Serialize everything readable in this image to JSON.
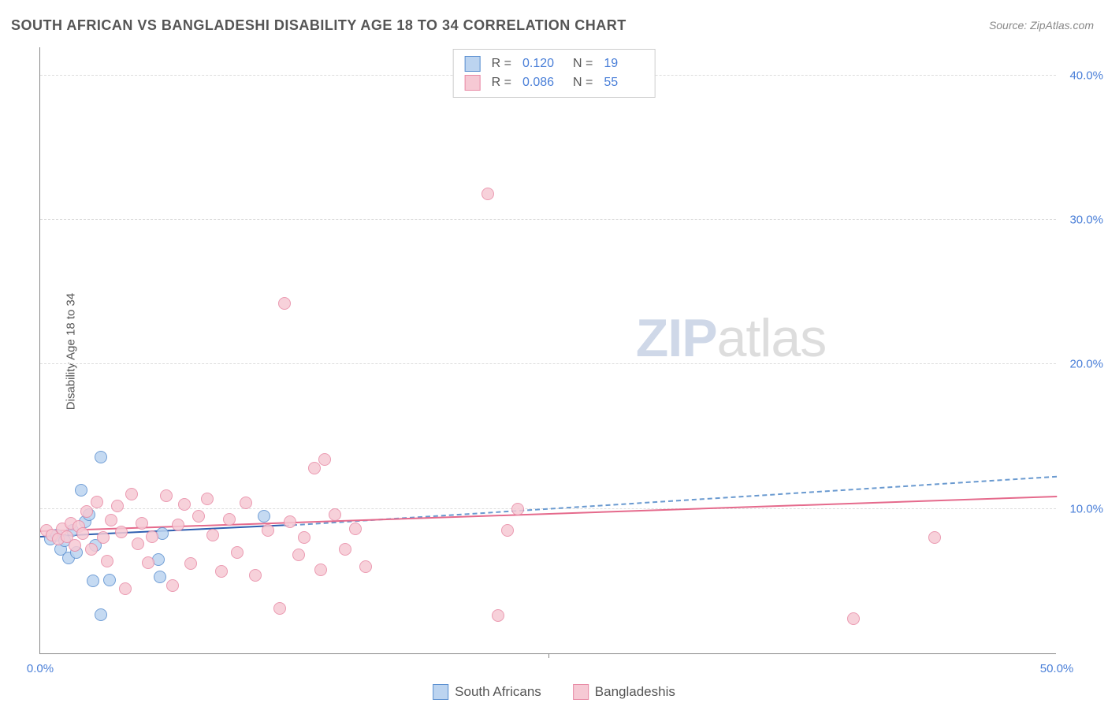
{
  "title": "SOUTH AFRICAN VS BANGLADESHI DISABILITY AGE 18 TO 34 CORRELATION CHART",
  "source_label": "Source: ZipAtlas.com",
  "ylabel": "Disability Age 18 to 34",
  "watermark_bold": "ZIP",
  "watermark_light": "atlas",
  "chart": {
    "type": "scatter",
    "xlim": [
      0,
      50
    ],
    "ylim": [
      0,
      42
    ],
    "x_ticks": [
      0,
      50
    ],
    "x_tick_labels": [
      "0.0%",
      "50.0%"
    ],
    "y_ticks": [
      10,
      20,
      30,
      40
    ],
    "y_tick_labels": [
      "10.0%",
      "20.0%",
      "30.0%",
      "40.0%"
    ],
    "x_minor_tick": 25,
    "background_color": "#ffffff",
    "grid_color": "#dddddd",
    "axis_color": "#888888",
    "tick_label_color": "#4a7fd8",
    "point_radius": 8,
    "point_border_width": 1,
    "series": [
      {
        "name": "South Africans",
        "fill": "#bcd4f0",
        "stroke": "#5a8fd0",
        "reg_line_color": "#2f5fb0",
        "reg_dash_color": "#6a9ad0",
        "R": "0.120",
        "N": "19",
        "regression": {
          "x1": 0,
          "y1": 8.0,
          "x2": 12,
          "y2": 8.8,
          "dash_x2": 50,
          "dash_y2": 12.2
        },
        "points": [
          [
            0.5,
            7.9
          ],
          [
            0.8,
            8.2
          ],
          [
            1.0,
            7.2
          ],
          [
            1.2,
            7.8
          ],
          [
            1.4,
            6.6
          ],
          [
            1.6,
            8.5
          ],
          [
            1.8,
            7.0
          ],
          [
            2.0,
            11.3
          ],
          [
            2.2,
            9.1
          ],
          [
            2.4,
            9.6
          ],
          [
            2.6,
            5.0
          ],
          [
            2.7,
            7.5
          ],
          [
            3.0,
            2.7
          ],
          [
            3.0,
            13.6
          ],
          [
            3.4,
            5.1
          ],
          [
            5.8,
            6.5
          ],
          [
            5.9,
            5.3
          ],
          [
            6.0,
            8.3
          ],
          [
            11.0,
            9.5
          ]
        ]
      },
      {
        "name": "Bangladeshis",
        "fill": "#f6c9d4",
        "stroke": "#e88aa5",
        "reg_line_color": "#e56a8c",
        "reg_dash_color": "#e88aa5",
        "R": "0.086",
        "N": "55",
        "regression": {
          "x1": 0,
          "y1": 8.4,
          "x2": 50,
          "y2": 10.8,
          "dash_x2": 50,
          "dash_y2": 10.8
        },
        "points": [
          [
            0.3,
            8.5
          ],
          [
            0.6,
            8.2
          ],
          [
            0.9,
            7.9
          ],
          [
            1.1,
            8.6
          ],
          [
            1.3,
            8.1
          ],
          [
            1.5,
            9.0
          ],
          [
            1.7,
            7.5
          ],
          [
            1.9,
            8.8
          ],
          [
            2.1,
            8.3
          ],
          [
            2.3,
            9.8
          ],
          [
            2.5,
            7.2
          ],
          [
            2.8,
            10.5
          ],
          [
            3.1,
            8.0
          ],
          [
            3.3,
            6.4
          ],
          [
            3.5,
            9.2
          ],
          [
            3.8,
            10.2
          ],
          [
            4.0,
            8.4
          ],
          [
            4.2,
            4.5
          ],
          [
            4.5,
            11.0
          ],
          [
            4.8,
            7.6
          ],
          [
            5.0,
            9.0
          ],
          [
            5.3,
            6.3
          ],
          [
            5.5,
            8.1
          ],
          [
            6.2,
            10.9
          ],
          [
            6.5,
            4.7
          ],
          [
            6.8,
            8.9
          ],
          [
            7.1,
            10.3
          ],
          [
            7.4,
            6.2
          ],
          [
            7.8,
            9.5
          ],
          [
            8.2,
            10.7
          ],
          [
            8.5,
            8.2
          ],
          [
            8.9,
            5.7
          ],
          [
            9.3,
            9.3
          ],
          [
            9.7,
            7.0
          ],
          [
            10.1,
            10.4
          ],
          [
            10.6,
            5.4
          ],
          [
            11.2,
            8.5
          ],
          [
            11.8,
            3.1
          ],
          [
            12.0,
            24.2
          ],
          [
            12.3,
            9.1
          ],
          [
            12.7,
            6.8
          ],
          [
            13.0,
            8.0
          ],
          [
            13.5,
            12.8
          ],
          [
            13.8,
            5.8
          ],
          [
            14.0,
            13.4
          ],
          [
            14.5,
            9.6
          ],
          [
            15.0,
            7.2
          ],
          [
            15.5,
            8.6
          ],
          [
            16.0,
            6.0
          ],
          [
            22.0,
            31.8
          ],
          [
            22.5,
            2.6
          ],
          [
            23.0,
            8.5
          ],
          [
            23.5,
            10.0
          ],
          [
            40.0,
            2.4
          ],
          [
            44.0,
            8.0
          ]
        ]
      }
    ]
  },
  "stat_legend_title_R": "R =",
  "stat_legend_title_N": "N =",
  "bottom_legend": [
    {
      "label": "South Africans",
      "fill": "#bcd4f0",
      "stroke": "#5a8fd0"
    },
    {
      "label": "Bangladeshis",
      "fill": "#f6c9d4",
      "stroke": "#e88aa5"
    }
  ]
}
